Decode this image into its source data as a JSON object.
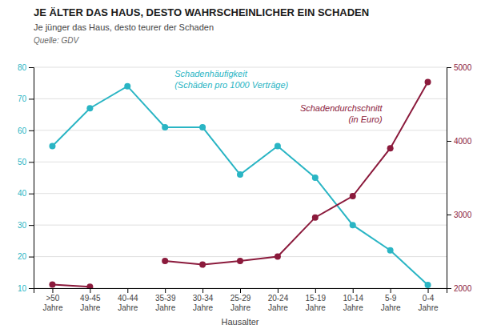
{
  "chart_data": {
    "type": "line",
    "title": "JE ÄLTER DAS HAUS, DESTO WAHRSCHEINLICHER EIN SCHADEN",
    "subtitle": "Je jünger das Haus, desto teurer der Schaden",
    "annotations": [
      "Quelle: GDV"
    ],
    "x_label": "Hausalter",
    "categories": [
      ">50\nJahre",
      "49-45\nJahre",
      "40-44\nJahre",
      "35-39\nJahre",
      "30-34\nJahre",
      "25-29\nJahre",
      "20-24\nJahre",
      "15-19\nJahre",
      "10-14\nJahre",
      "5-9\nJahre",
      "0-4\nJahre"
    ],
    "series": [
      {
        "name": "Schadenhäufigkeit\n(Schäden pro 1000 Verträge)",
        "color": "#2ab5c4",
        "values": [
          55,
          67,
          74,
          61,
          61,
          46,
          55,
          45,
          30,
          22,
          11
        ]
      },
      {
        "name": "Schadendurchschnitt\n(in Euro)",
        "color": "#8b1a3c",
        "axis": "y2",
        "values": [
          2050,
          2020,
          null,
          2370,
          2320,
          2370,
          2430,
          2960,
          3250,
          3900,
          4800
        ]
      }
    ],
    "ylim": [
      10,
      80
    ],
    "yticks": [
      10,
      20,
      30,
      40,
      50,
      60,
      70,
      80
    ],
    "y2lim": [
      2000,
      5000
    ],
    "y2ticks": [
      2000,
      3000,
      4000,
      5000
    ],
    "grid": true,
    "marker": "circle"
  }
}
